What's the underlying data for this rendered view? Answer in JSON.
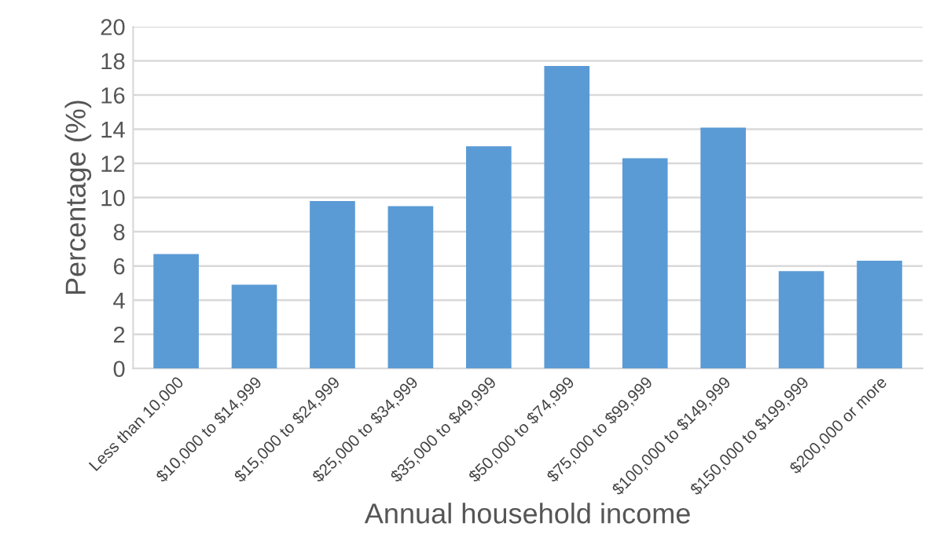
{
  "chart_data": {
    "type": "bar",
    "xlabel": "Annual household income",
    "ylabel": "Percentage (%)",
    "categories": [
      "Less than 10,000",
      "$10,000 to $14,999",
      "$15,000 to $24,999",
      "$25,000 to $34,999",
      "$35,000 to $49,999",
      "$50,000 to $74,999",
      "$75,000 to $99,999",
      "$100,000 to $149,999",
      "$150,000 to $199,999",
      "$200,000 or more"
    ],
    "values": [
      6.7,
      4.9,
      9.8,
      9.5,
      13.0,
      17.7,
      12.3,
      14.1,
      5.7,
      6.3
    ],
    "color": "#5b9bd5",
    "ylim": [
      0,
      20
    ],
    "yticks": [
      0,
      2,
      4,
      6,
      8,
      10,
      12,
      14,
      16,
      18,
      20
    ],
    "grid": "y"
  }
}
